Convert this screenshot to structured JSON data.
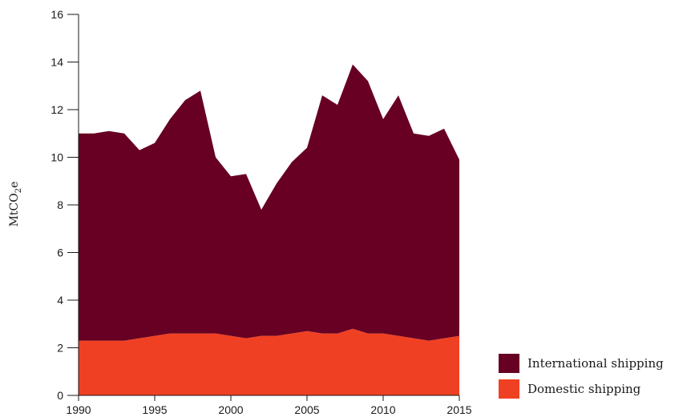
{
  "chart_data": {
    "type": "area",
    "stacked": true,
    "x": [
      1990,
      1991,
      1992,
      1993,
      1994,
      1995,
      1996,
      1997,
      1998,
      1999,
      2000,
      2001,
      2002,
      2003,
      2004,
      2005,
      2006,
      2007,
      2008,
      2009,
      2010,
      2011,
      2012,
      2013,
      2014,
      2015
    ],
    "series": [
      {
        "name": "Domestic shipping",
        "color": "#f04023",
        "values": [
          2.3,
          2.3,
          2.3,
          2.3,
          2.4,
          2.5,
          2.6,
          2.6,
          2.6,
          2.6,
          2.5,
          2.4,
          2.5,
          2.5,
          2.6,
          2.7,
          2.6,
          2.6,
          2.8,
          2.6,
          2.6,
          2.5,
          2.4,
          2.3,
          2.4,
          2.5
        ]
      },
      {
        "name": "International shipping",
        "color": "#670022",
        "values": [
          8.7,
          8.7,
          8.8,
          8.7,
          7.9,
          8.1,
          9.0,
          9.8,
          10.2,
          7.4,
          6.7,
          6.9,
          5.3,
          6.4,
          7.2,
          7.7,
          10.0,
          9.6,
          11.1,
          10.6,
          9.0,
          10.1,
          8.6,
          8.6,
          8.8,
          7.4
        ]
      }
    ],
    "ylabel_main": "MtCO",
    "ylabel_sub": "2",
    "ylabel_suffix": "e",
    "ylim": [
      0,
      16
    ],
    "yticks": [
      0,
      2,
      4,
      6,
      8,
      10,
      12,
      14,
      16
    ],
    "xticks": [
      1990,
      1995,
      2000,
      2005,
      2010,
      2015
    ],
    "legend": {
      "placement": "bottom-right",
      "order": [
        "International shipping",
        "Domestic shipping"
      ]
    }
  }
}
